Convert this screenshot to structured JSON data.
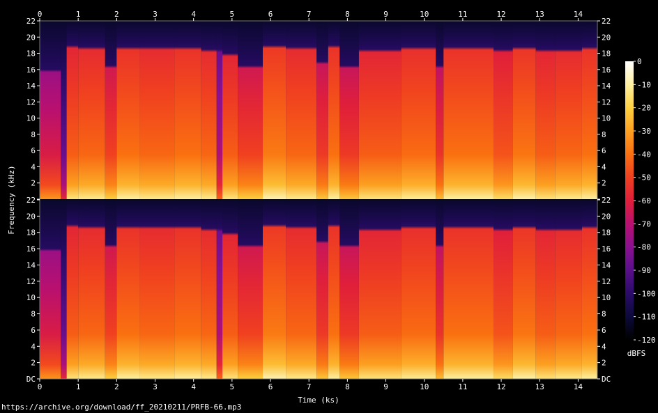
{
  "source_url": "https://archive.org/download/ff_20210211/PRFB-66.mp3",
  "chart_data": {
    "type": "heatmap",
    "title": "",
    "xlabel": "Time (ks)",
    "ylabel": "Frequency (kHz)",
    "x_range": [
      0,
      14.5
    ],
    "x_ticks": [
      "0",
      "1",
      "2",
      "3",
      "4",
      "5",
      "6",
      "7",
      "8",
      "9",
      "10",
      "11",
      "12",
      "13",
      "14"
    ],
    "y_range_khz": [
      0,
      22
    ],
    "y_ticks": [
      "DC",
      "2",
      "4",
      "6",
      "8",
      "10",
      "12",
      "14",
      "16",
      "18",
      "20",
      "22"
    ],
    "channels": [
      "Channel 1",
      "Channel 2"
    ],
    "colorbar": {
      "label": "dBFS",
      "range": [
        -120,
        0
      ],
      "ticks": [
        "0",
        "-10",
        "-20",
        "-30",
        "-40",
        "-50",
        "-60",
        "-70",
        "-80",
        "-90",
        "-100",
        "-110",
        "-120"
      ],
      "colors": [
        "#000000",
        "#0c0a3a",
        "#2a0b6a",
        "#5a0f8a",
        "#8a1090",
        "#b81070",
        "#e01f3a",
        "#f04020",
        "#fa7010",
        "#fca020",
        "#fcd040",
        "#fdf0a0",
        "#ffffff"
      ]
    },
    "segments": [
      {
        "start": 0.0,
        "end": 0.55,
        "cutoff_khz": 16.0,
        "level_db": -70
      },
      {
        "start": 0.55,
        "end": 0.7,
        "cutoff_khz": 16.0,
        "level_db": -95
      },
      {
        "start": 0.7,
        "end": 1.0,
        "cutoff_khz": 19.0,
        "level_db": -52
      },
      {
        "start": 1.0,
        "end": 1.7,
        "cutoff_khz": 18.8,
        "level_db": -50
      },
      {
        "start": 1.7,
        "end": 2.0,
        "cutoff_khz": 16.5,
        "level_db": -58
      },
      {
        "start": 2.0,
        "end": 2.6,
        "cutoff_khz": 18.8,
        "level_db": -48
      },
      {
        "start": 2.6,
        "end": 3.5,
        "cutoff_khz": 18.8,
        "level_db": -50
      },
      {
        "start": 3.5,
        "end": 4.2,
        "cutoff_khz": 18.8,
        "level_db": -48
      },
      {
        "start": 4.2,
        "end": 4.6,
        "cutoff_khz": 18.5,
        "level_db": -50
      },
      {
        "start": 4.6,
        "end": 4.75,
        "cutoff_khz": 18.5,
        "level_db": -80
      },
      {
        "start": 4.75,
        "end": 5.15,
        "cutoff_khz": 18.0,
        "level_db": -52
      },
      {
        "start": 5.15,
        "end": 5.8,
        "cutoff_khz": 16.5,
        "level_db": -58
      },
      {
        "start": 5.8,
        "end": 6.4,
        "cutoff_khz": 19.0,
        "level_db": -46
      },
      {
        "start": 6.4,
        "end": 7.2,
        "cutoff_khz": 18.8,
        "level_db": -50
      },
      {
        "start": 7.2,
        "end": 7.5,
        "cutoff_khz": 17.0,
        "level_db": -60
      },
      {
        "start": 7.5,
        "end": 7.8,
        "cutoff_khz": 19.0,
        "level_db": -48
      },
      {
        "start": 7.8,
        "end": 8.3,
        "cutoff_khz": 16.5,
        "level_db": -60
      },
      {
        "start": 8.3,
        "end": 9.4,
        "cutoff_khz": 18.5,
        "level_db": -52
      },
      {
        "start": 9.4,
        "end": 10.3,
        "cutoff_khz": 18.8,
        "level_db": -49
      },
      {
        "start": 10.3,
        "end": 10.5,
        "cutoff_khz": 16.5,
        "level_db": -62
      },
      {
        "start": 10.5,
        "end": 11.8,
        "cutoff_khz": 18.8,
        "level_db": -48
      },
      {
        "start": 11.8,
        "end": 12.3,
        "cutoff_khz": 18.5,
        "level_db": -54
      },
      {
        "start": 12.3,
        "end": 12.9,
        "cutoff_khz": 18.8,
        "level_db": -47
      },
      {
        "start": 12.9,
        "end": 13.4,
        "cutoff_khz": 18.5,
        "level_db": -52
      },
      {
        "start": 13.4,
        "end": 14.1,
        "cutoff_khz": 18.5,
        "level_db": -50
      },
      {
        "start": 14.1,
        "end": 14.5,
        "cutoff_khz": 18.8,
        "level_db": -48
      }
    ],
    "grid": false
  }
}
